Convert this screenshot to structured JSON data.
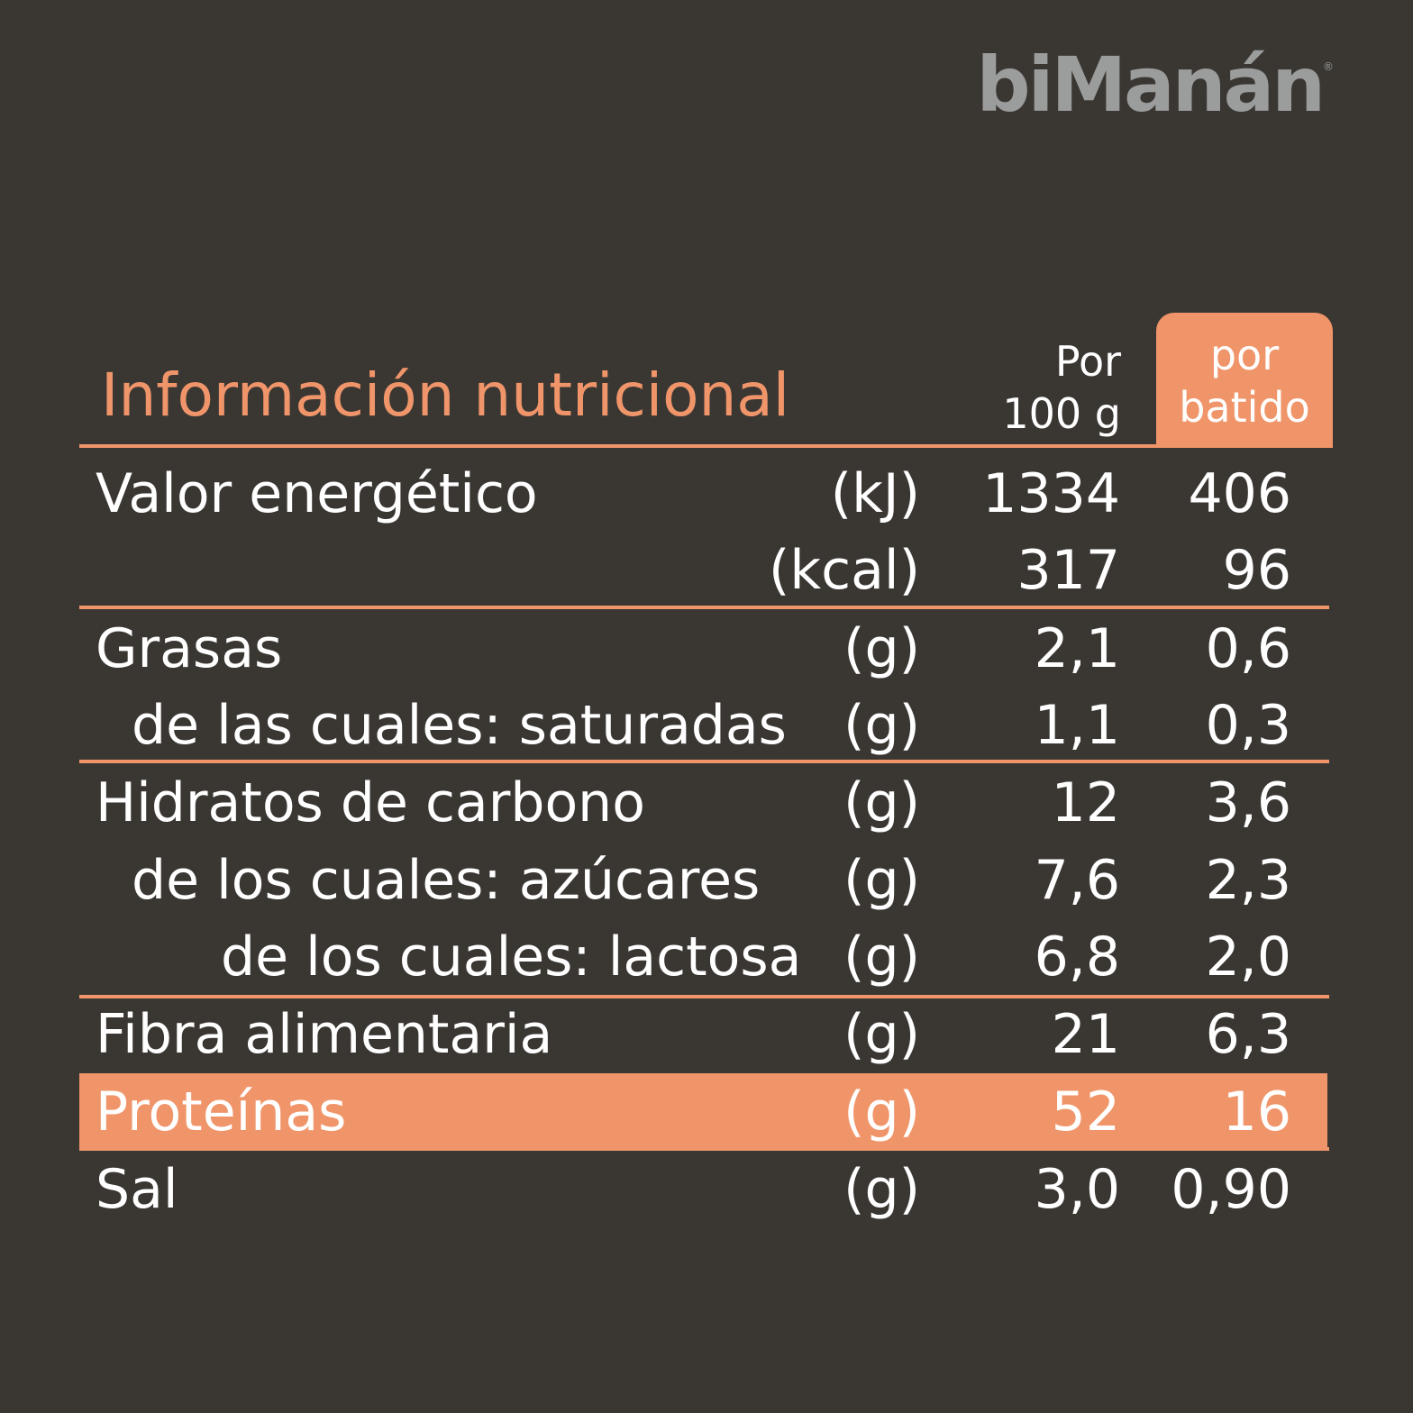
{
  "brand": {
    "name": "biManán",
    "registered": "®"
  },
  "title": "Información nutricional",
  "columns": {
    "per_100g_line1": "Por",
    "per_100g_line2": "100 g",
    "per_shake_line1": "por",
    "per_shake_line2": "batido"
  },
  "colors": {
    "background": "#3a3733",
    "accent": "#f0956a",
    "logo": "#9b9c9c",
    "text": "#ffffff"
  },
  "rows": [
    {
      "label": "Valor energético",
      "unit": "(kJ)",
      "per_100g": "1334",
      "per_shake": "406"
    },
    {
      "label": "",
      "unit": "(kcal)",
      "per_100g": "317",
      "per_shake": "96"
    },
    {
      "label": "Grasas",
      "unit": "(g)",
      "per_100g": "2,1",
      "per_shake": "0,6"
    },
    {
      "label": "de las cuales: saturadas",
      "unit": "(g)",
      "per_100g": "1,1",
      "per_shake": "0,3"
    },
    {
      "label": "Hidratos de carbono",
      "unit": "(g)",
      "per_100g": "12",
      "per_shake": "3,6"
    },
    {
      "label": "de los cuales: azúcares",
      "unit": "(g)",
      "per_100g": "7,6",
      "per_shake": "2,3"
    },
    {
      "label": "de los cuales: lactosa",
      "unit": "(g)",
      "per_100g": "6,8",
      "per_shake": "2,0"
    },
    {
      "label": "Fibra alimentaria",
      "unit": "(g)",
      "per_100g": "21",
      "per_shake": "6,3"
    },
    {
      "label": "Proteínas",
      "unit": "(g)",
      "per_100g": "52",
      "per_shake": "16"
    },
    {
      "label": "Sal",
      "unit": "(g)",
      "per_100g": "3,0",
      "per_shake": "0,90"
    }
  ]
}
